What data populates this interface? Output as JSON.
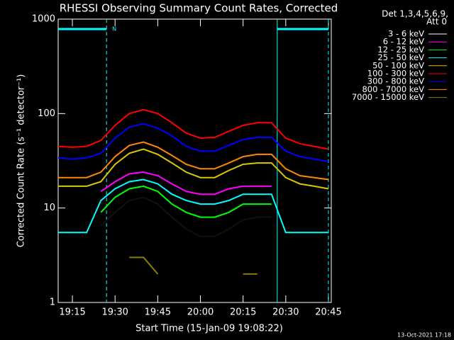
{
  "chart_data": {
    "type": "line",
    "title": "RHESSI Observing Summary Count Rates, Corrected",
    "x_label": "Start Time (15-Jan-09 19:08:22)",
    "y_label": "Corrected Count Rate (s⁻¹ detector⁻¹)",
    "legend_title": [
      "Det 1,3,4,5,6,9,",
      "Att 0"
    ],
    "footer": "13-Oct-2021 17:18",
    "log_scale": true,
    "ylim": [
      1,
      1000
    ],
    "yticks": [
      1,
      10,
      100,
      1000
    ],
    "xlim": [
      "19:10",
      "20:46"
    ],
    "xticks": [
      "19:15",
      "19:30",
      "19:45",
      "20:00",
      "20:15",
      "20:30",
      "20:45"
    ],
    "flag_label": "N",
    "flag_color": "#00ffff",
    "flag_bars": [
      {
        "start": "19:10",
        "end": "19:27"
      },
      {
        "start": "20:27",
        "end": "20:45"
      }
    ],
    "vlines": [
      {
        "x": "19:27",
        "style": "dashed"
      },
      {
        "x": "20:27",
        "style": "solid"
      },
      {
        "x": "20:45",
        "style": "dashed"
      }
    ],
    "x": [
      "19:10",
      "19:15",
      "19:20",
      "19:25",
      "19:30",
      "19:35",
      "19:40",
      "19:45",
      "19:50",
      "19:55",
      "20:00",
      "20:05",
      "20:10",
      "20:15",
      "20:20",
      "20:25",
      "20:30",
      "20:35",
      "20:40",
      "20:45"
    ],
    "series": [
      {
        "name": "3 - 6 keV",
        "color": "#000000",
        "values": [
          null,
          null,
          null,
          6.5,
          9,
          12,
          13,
          11,
          8,
          6,
          5,
          5,
          6,
          7.5,
          8,
          8,
          null,
          null,
          null,
          null
        ]
      },
      {
        "name": "6 - 12 keV",
        "color": "#ff00ff",
        "values": [
          null,
          null,
          null,
          15,
          19,
          23,
          24,
          22,
          18,
          15,
          14,
          14,
          16,
          17,
          17,
          17,
          null,
          null,
          null,
          null
        ]
      },
      {
        "name": "12 - 25 keV",
        "color": "#00ff00",
        "values": [
          null,
          null,
          null,
          9,
          13,
          16,
          17,
          15,
          11,
          9,
          8,
          8,
          9,
          11,
          11,
          11,
          null,
          null,
          null,
          null
        ]
      },
      {
        "name": "25 - 50 keV",
        "color": "#00ffff",
        "values": [
          5.5,
          5.5,
          5.5,
          12,
          16,
          19,
          20,
          18,
          14,
          12,
          11,
          11,
          12,
          14,
          14,
          14,
          5.5,
          5.5,
          5.5,
          5.5
        ]
      },
      {
        "name": "50 - 100 keV",
        "color": "#d8c800",
        "values": [
          17,
          17,
          17,
          19,
          29,
          38,
          42,
          37,
          30,
          24,
          21,
          21,
          25,
          29,
          30,
          30,
          21,
          18,
          17,
          16
        ]
      },
      {
        "name": "100 - 300 keV",
        "color": "#ff0000",
        "values": [
          45,
          44,
          45,
          52,
          75,
          100,
          110,
          100,
          80,
          62,
          55,
          56,
          65,
          75,
          80,
          80,
          55,
          48,
          45,
          42
        ]
      },
      {
        "name": "300 - 800 keV",
        "color": "#0000ff",
        "values": [
          34,
          33,
          34,
          38,
          55,
          72,
          78,
          70,
          58,
          45,
          40,
          40,
          46,
          53,
          56,
          56,
          40,
          35,
          33,
          31
        ]
      },
      {
        "name": "800 - 7000 keV",
        "color": "#ff8800",
        "values": [
          21,
          21,
          21,
          24,
          35,
          46,
          50,
          44,
          36,
          29,
          26,
          26,
          30,
          35,
          37,
          37,
          26,
          22,
          21,
          20
        ]
      },
      {
        "name": "7000 - 15000 keV",
        "color": "#8b7d00",
        "values": [
          null,
          null,
          null,
          null,
          null,
          3,
          3,
          2,
          null,
          null,
          null,
          null,
          null,
          2,
          2,
          null,
          null,
          null,
          null,
          null
        ]
      }
    ]
  }
}
